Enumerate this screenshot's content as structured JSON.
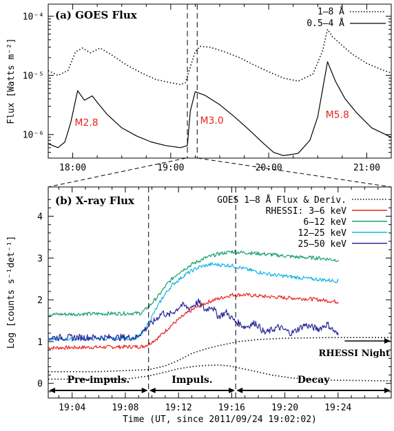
{
  "chart_data": [
    {
      "type": "line",
      "title": "(a) GOES Flux",
      "ylabel": "Flux [Watts m⁻²]",
      "yscale": "log",
      "ylim": [
        4e-07,
        0.00016
      ],
      "xlim_hours": [
        17.75,
        21.25
      ],
      "x_tick_labels": [
        "18:00",
        "19:00",
        "20:00",
        "21:00"
      ],
      "y_tick_labels": [
        "10⁻⁶",
        "10⁻⁵",
        "10⁻⁴"
      ],
      "legend_position": "top-right",
      "series": [
        {
          "name": "1–8 Å",
          "style": "dotted",
          "points": [
            [
              17.75,
              1.2e-05
            ],
            [
              17.85,
              1e-05
            ],
            [
              17.95,
              1.2e-05
            ],
            [
              18.03,
              2.5e-05
            ],
            [
              18.1,
              2.9e-05
            ],
            [
              18.18,
              2.4e-05
            ],
            [
              18.28,
              2.9e-05
            ],
            [
              18.4,
              2.2e-05
            ],
            [
              18.55,
              1.5e-05
            ],
            [
              18.7,
              1.1e-05
            ],
            [
              18.85,
              8.5e-06
            ],
            [
              19.0,
              7.5e-06
            ],
            [
              19.1,
              7e-06
            ],
            [
              19.15,
              7.5e-06
            ],
            [
              19.2,
              1.4e-05
            ],
            [
              19.25,
              2.5e-05
            ],
            [
              19.3,
              3.1e-05
            ],
            [
              19.4,
              3e-05
            ],
            [
              19.55,
              2.5e-05
            ],
            [
              19.7,
              2e-05
            ],
            [
              19.85,
              1.5e-05
            ],
            [
              20.0,
              1.15e-05
            ],
            [
              20.15,
              9e-06
            ],
            [
              20.3,
              8e-06
            ],
            [
              20.45,
              1.05e-05
            ],
            [
              20.55,
              2.6e-05
            ],
            [
              20.6,
              6e-05
            ],
            [
              20.65,
              4.5e-05
            ],
            [
              20.75,
              3.2e-05
            ],
            [
              20.85,
              2.3e-05
            ],
            [
              21.0,
              1.6e-05
            ],
            [
              21.15,
              1.25e-05
            ],
            [
              21.25,
              1.1e-05
            ]
          ]
        },
        {
          "name": "0.5–4 Å",
          "style": "solid",
          "points": [
            [
              17.75,
              7e-07
            ],
            [
              17.85,
              6e-07
            ],
            [
              17.92,
              7.5e-07
            ],
            [
              17.98,
              1.6e-06
            ],
            [
              18.05,
              5.5e-06
            ],
            [
              18.12,
              3.8e-06
            ],
            [
              18.2,
              4.5e-06
            ],
            [
              18.25,
              3.5e-06
            ],
            [
              18.35,
              2.2e-06
            ],
            [
              18.5,
              1.3e-06
            ],
            [
              18.65,
              9.5e-07
            ],
            [
              18.8,
              7.5e-07
            ],
            [
              18.95,
              6.5e-07
            ],
            [
              19.1,
              6e-07
            ],
            [
              19.17,
              6.5e-07
            ],
            [
              19.2,
              2.5e-06
            ],
            [
              19.25,
              5.3e-06
            ],
            [
              19.35,
              4.6e-06
            ],
            [
              19.5,
              3.2e-06
            ],
            [
              19.65,
              2e-06
            ],
            [
              19.8,
              1.2e-06
            ],
            [
              19.95,
              7e-07
            ],
            [
              20.05,
              5e-07
            ],
            [
              20.15,
              4.4e-07
            ],
            [
              20.3,
              4.8e-07
            ],
            [
              20.42,
              8e-07
            ],
            [
              20.5,
              2e-06
            ],
            [
              20.6,
              1.7e-05
            ],
            [
              20.68,
              8e-06
            ],
            [
              20.78,
              4e-06
            ],
            [
              20.9,
              2.3e-06
            ],
            [
              21.05,
              1.3e-06
            ],
            [
              21.25,
              9e-07
            ]
          ]
        }
      ],
      "annotations": [
        "M2.8",
        "M3.0",
        "M5.8"
      ],
      "annotation_color": "#e8231f",
      "annotation_points": [
        [
          18.14,
          1.6e-06
        ],
        [
          19.42,
          1.75e-06
        ],
        [
          20.7,
          2.2e-06
        ]
      ]
    },
    {
      "type": "line",
      "title": "(b) X-ray Flux",
      "ylabel": "Log [counts s⁻¹det⁻¹]",
      "xlabel": "Time (UT, since 2011/09/24 19:02:02)",
      "ylim": [
        -0.35,
        4.7
      ],
      "xlim_minutes": [
        2.2,
        28.0
      ],
      "x_tick_labels": [
        "19:04",
        "19:08",
        "19:12",
        "19:16",
        "19:20",
        "19:24"
      ],
      "y_tick_labels": [
        "0",
        "1",
        "2",
        "3",
        "4"
      ],
      "legend_position": "top-right",
      "series": [
        {
          "name": "GOES 1–8 Å Flux & Deriv.",
          "style": "dotted",
          "color": "#000000",
          "points": [
            [
              2.2,
              0.28
            ],
            [
              6,
              0.28
            ],
            [
              9.8,
              0.33
            ],
            [
              11,
              0.42
            ],
            [
              12,
              0.55
            ],
            [
              13,
              0.72
            ],
            [
              14,
              0.82
            ],
            [
              15,
              0.9
            ],
            [
              16.5,
              1.0
            ],
            [
              18,
              1.05
            ],
            [
              20,
              1.08
            ],
            [
              24,
              1.1
            ],
            [
              28,
              1.1
            ]
          ]
        },
        {
          "name": "",
          "style": "dotted",
          "color": "#000000",
          "points": [
            [
              2.2,
              0.1
            ],
            [
              8,
              0.1
            ],
            [
              9.8,
              0.18
            ],
            [
              11,
              0.27
            ],
            [
              12,
              0.35
            ],
            [
              13,
              0.4
            ],
            [
              14,
              0.43
            ],
            [
              15,
              0.44
            ],
            [
              15.8,
              0.42
            ],
            [
              17,
              0.34
            ],
            [
              18,
              0.27
            ],
            [
              19,
              0.2
            ],
            [
              20.5,
              0.13
            ],
            [
              23,
              0.08
            ],
            [
              28,
              0.06
            ]
          ]
        },
        {
          "name": "RHESSI: 3–6 keV",
          "color": "#e8231f",
          "points": [
            [
              2.2,
              0.85
            ],
            [
              9.3,
              0.88
            ],
            [
              9.8,
              0.95
            ],
            [
              10.5,
              1.1
            ],
            [
              11.5,
              1.4
            ],
            [
              12.5,
              1.65
            ],
            [
              13.5,
              1.85
            ],
            [
              14.5,
              1.98
            ],
            [
              16,
              2.12
            ],
            [
              17,
              2.12
            ],
            [
              18.5,
              2.08
            ],
            [
              20,
              2.05
            ],
            [
              22,
              2.02
            ],
            [
              24,
              1.95
            ]
          ]
        },
        {
          "name": "6–12 keV",
          "color": "#17a06a",
          "points": [
            [
              2.2,
              1.65
            ],
            [
              9.2,
              1.68
            ],
            [
              9.8,
              1.85
            ],
            [
              10.5,
              2.1
            ],
            [
              11.2,
              2.4
            ],
            [
              12,
              2.65
            ],
            [
              13,
              2.85
            ],
            [
              14,
              3.0
            ],
            [
              15,
              3.1
            ],
            [
              16,
              3.15
            ],
            [
              17.5,
              3.12
            ],
            [
              19,
              3.08
            ],
            [
              21,
              3.02
            ],
            [
              22.5,
              3.0
            ],
            [
              24,
              2.95
            ]
          ]
        },
        {
          "name": "12–25 keV",
          "color": "#14b3e6",
          "points": [
            [
              2.2,
              1.05
            ],
            [
              8.8,
              1.08
            ],
            [
              9.3,
              1.2
            ],
            [
              10,
              1.6
            ],
            [
              10.8,
              2.05
            ],
            [
              11.5,
              2.35
            ],
            [
              12.5,
              2.6
            ],
            [
              13.5,
              2.78
            ],
            [
              14.5,
              2.85
            ],
            [
              16,
              2.82
            ],
            [
              17.5,
              2.7
            ],
            [
              19,
              2.6
            ],
            [
              20.5,
              2.55
            ],
            [
              22,
              2.5
            ],
            [
              24,
              2.45
            ]
          ]
        },
        {
          "name": "25–50 keV",
          "color": "#282896",
          "points": [
            [
              2.2,
              1.1
            ],
            [
              8.8,
              1.1
            ],
            [
              9.5,
              1.3
            ],
            [
              10.2,
              1.5
            ],
            [
              10.8,
              1.7
            ],
            [
              11.2,
              1.62
            ],
            [
              11.8,
              1.75
            ],
            [
              12.2,
              1.88
            ],
            [
              12.8,
              1.8
            ],
            [
              13.5,
              1.95
            ],
            [
              14,
              1.75
            ],
            [
              14.5,
              1.85
            ],
            [
              15,
              1.6
            ],
            [
              15.6,
              1.7
            ],
            [
              16.2,
              1.5
            ],
            [
              17,
              1.35
            ],
            [
              17.8,
              1.45
            ],
            [
              18.5,
              1.2
            ],
            [
              19.5,
              1.35
            ],
            [
              20.5,
              1.2
            ],
            [
              21.5,
              1.4
            ],
            [
              22.5,
              1.3
            ],
            [
              23.2,
              1.42
            ],
            [
              24,
              1.15
            ]
          ]
        }
      ],
      "phase_labels": [
        "Pre-impuls.",
        "Impuls.",
        "Decay"
      ],
      "phase_boundaries_minutes": [
        9.75,
        16.3
      ],
      "rhessi_night_label": "RHESSI Night",
      "rhessi_night_start_minutes": 24.5
    }
  ]
}
